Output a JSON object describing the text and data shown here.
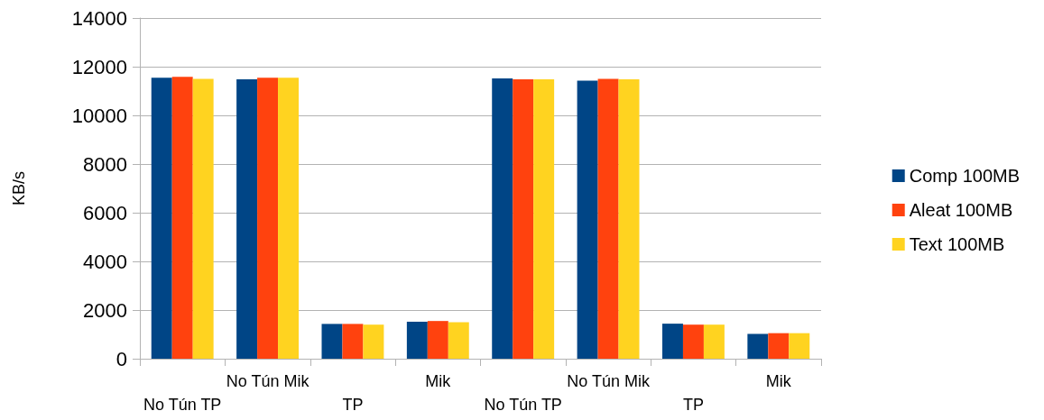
{
  "chart_data": {
    "type": "bar",
    "ylabel": "KB/s",
    "categories": [
      "No Tún TP",
      "No Tún Mik",
      "TP",
      "Mik",
      "No Tún TP",
      "No Tún Mik",
      "TP",
      "Mik"
    ],
    "series": [
      {
        "name": "Comp 100MB",
        "color": "#004586",
        "values": [
          11550,
          11480,
          1430,
          1520,
          11520,
          11430,
          1440,
          1020
        ]
      },
      {
        "name": "Aleat 100MB",
        "color": "#ff420e",
        "values": [
          11580,
          11550,
          1430,
          1550,
          11480,
          11500,
          1400,
          1050
        ]
      },
      {
        "name": "Text 100MB",
        "color": "#ffd320",
        "values": [
          11500,
          11550,
          1400,
          1500,
          11480,
          11480,
          1400,
          1050
        ]
      }
    ],
    "ylim": [
      0,
      14000
    ],
    "yticks": [
      0,
      2000,
      4000,
      6000,
      8000,
      10000,
      12000,
      14000
    ],
    "grid": "y",
    "legend": "right"
  }
}
